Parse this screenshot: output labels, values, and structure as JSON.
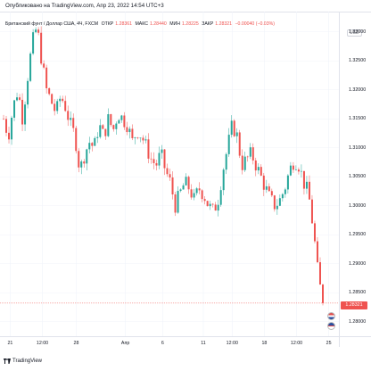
{
  "caption": "Опубликовано на TradingView.com, Апр 23, 2022 14:54 UTC+3",
  "legend": {
    "symbol": "Британский фунт / Доллар США, 4Ч, FXCM",
    "open_label": "ОТКР",
    "open_value": "1.28361",
    "high_label": "МАКС",
    "high_value": "1.28440",
    "low_label": "МИН",
    "low_value": "1.28225",
    "close_label": "ЗАКР",
    "close_value": "1.28321",
    "change": "−0.00040 (−0.03%)"
  },
  "currency_badge": "USD",
  "last_price": "1.28321",
  "colors": {
    "up": "#26a69a",
    "down": "#ef5350",
    "last_line": "#ef5350"
  },
  "footer": {
    "brand": "TradingView"
  },
  "chart_data": {
    "type": "candlestick",
    "title": "Британский фунт / Доллар США, 4Ч, FXCM",
    "ylabel": "USD",
    "y_ticks": [
      "1.33000",
      "1.32500",
      "1.32000",
      "1.31500",
      "1.31000",
      "1.30500",
      "1.30000",
      "1.29500",
      "1.29000",
      "1.28500",
      "1.28000"
    ],
    "ylim": [
      1.2775,
      1.3335
    ],
    "x_ticks": [
      "21",
      "12:00",
      "28",
      "Апр",
      "6",
      "11",
      "12:00",
      "18",
      "12:00",
      "25"
    ],
    "x_tick_positions": [
      0.03,
      0.125,
      0.225,
      0.37,
      0.48,
      0.6,
      0.685,
      0.78,
      0.875,
      0.97
    ],
    "close_path": [
      1.315,
      1.312,
      1.317,
      1.32,
      1.315,
      1.322,
      1.328,
      1.331,
      1.325,
      1.32,
      1.318,
      1.316,
      1.319,
      1.317,
      1.314,
      1.312,
      1.306,
      1.309,
      1.311,
      1.31,
      1.314,
      1.312,
      1.315,
      1.313,
      1.316,
      1.315,
      1.314,
      1.311,
      1.313,
      1.312,
      1.31,
      1.308,
      1.307,
      1.309,
      1.306,
      1.304,
      1.3,
      1.302,
      1.304,
      1.303,
      1.301,
      1.303,
      1.302,
      1.3,
      1.299,
      1.301,
      1.306,
      1.31,
      1.314,
      1.312,
      1.307,
      1.308,
      1.309,
      1.307,
      1.305,
      1.303,
      1.301,
      1.3,
      1.301,
      1.303,
      1.306,
      1.308,
      1.307,
      1.304,
      1.302,
      1.296,
      1.288,
      1.2832
    ],
    "last_value": 1.28321
  }
}
